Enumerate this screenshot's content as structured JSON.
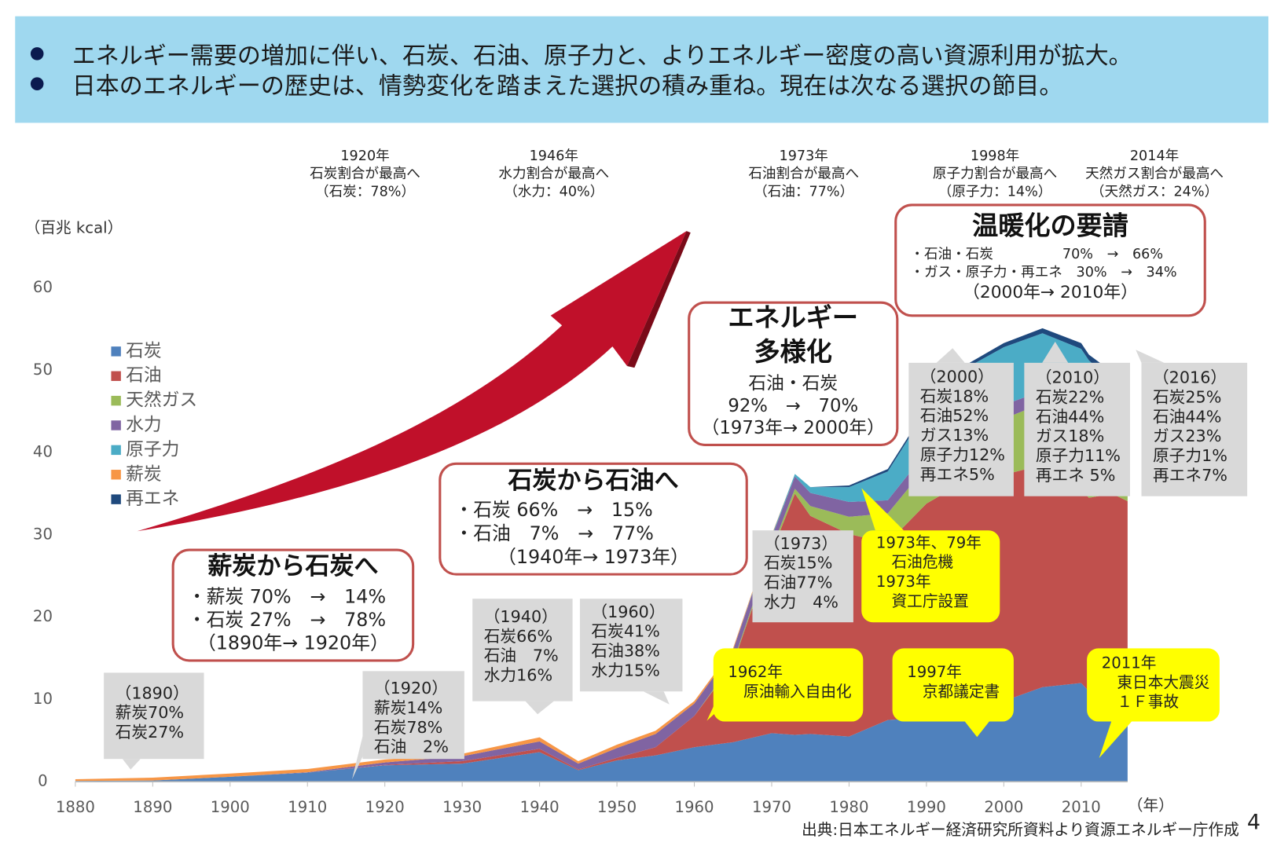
{
  "header": {
    "bullets": [
      "エネルギー需要の増加に伴い、石炭、石油、原子力と、よりエネルギー密度の高い資源利用が拡大。",
      "日本のエネルギーの歴史は、情勢変化を踏まえた選択の積み重ね。現在は次なる選択の節目。"
    ]
  },
  "milestones": [
    {
      "lines": [
        "1920年",
        "石炭割合が最高へ",
        "（石炭：78%）"
      ]
    },
    {
      "lines": [
        "1946年",
        "水力割合が最高へ",
        "（水力：40%）"
      ]
    },
    {
      "lines": [
        "1973年",
        "石油割合が最高へ",
        "（石油：77%）"
      ]
    },
    {
      "lines": [
        "1998年",
        "原子力割合が最高へ",
        "（原子力：14%）"
      ]
    },
    {
      "lines": [
        "2014年",
        "天然ガス割合が最高へ",
        "（天然ガス：24%）"
      ]
    }
  ],
  "boxes": [
    {
      "title": [
        "薪炭から石炭へ"
      ],
      "lines": [
        "・薪炭 70%　→　14%",
        "・石炭 27%　→　78%",
        "（1890年→ 1920年）"
      ]
    },
    {
      "title": [
        "石炭から石油へ"
      ],
      "lines": [
        "・石炭 66%　→　15%",
        "・石油　7%　→　77%",
        "（1940年→ 1973年）"
      ]
    },
    {
      "title": [
        "エネルギー",
        "多様化"
      ],
      "lines": [
        "石油・石炭",
        "92%　→　70%",
        "（1973年→ 2000年）"
      ]
    },
    {
      "title": [
        "温暖化の要請"
      ],
      "lines": [
        "・石油・石炭　　　　　70%　→　66%",
        "・ガス・原子力・再エネ　30%　→　34%",
        "（2000年→ 2010年）"
      ]
    }
  ],
  "gray_notes": [
    {
      "lines": [
        "（1890）",
        "薪炭70%",
        "石炭27%"
      ]
    },
    {
      "lines": [
        "（1920）",
        "薪炭14%",
        "石炭78%",
        "石油　2%"
      ]
    },
    {
      "lines": [
        "（1940）",
        "石炭66%",
        "石油　7%",
        "水力16%"
      ]
    },
    {
      "lines": [
        "（1960）",
        "石炭41%",
        "石油38%",
        "水力15%"
      ]
    },
    {
      "lines": [
        "（1973）",
        "石炭15%",
        "石油77%",
        "水力　4%"
      ]
    },
    {
      "lines": [
        "（2000）",
        "石炭18%",
        "石油52%",
        "ガス13%",
        "原子力12%",
        "再エネ5%"
      ]
    },
    {
      "lines": [
        "（2010）",
        "石炭22%",
        "石油44%",
        "ガス18%",
        "原子力11%",
        "再エネ 5%"
      ]
    },
    {
      "lines": [
        "（2016）",
        "石炭25%",
        "石油44%",
        "ガス23%",
        "原子力1%",
        "再エネ7%"
      ]
    }
  ],
  "yellow_notes": [
    {
      "lines": [
        "1962年",
        "　原油輸入自由化"
      ]
    },
    {
      "lines": [
        "1997年",
        "　京都議定書"
      ]
    },
    {
      "lines": [
        "2011年",
        "　東日本大震災",
        "　１Ｆ事故"
      ]
    },
    {
      "lines": [
        "1973年、79年",
        "　石油危機",
        "1973年",
        "　資工庁設置"
      ]
    }
  ],
  "source": "出典:日本エネルギー経済研究所資料より資源エネルギー庁作成",
  "page_number": "4",
  "chart_data": {
    "type": "stacked_area",
    "y_label": "（百兆 kcal）",
    "x_label": "（年）",
    "x": [
      1880,
      1890,
      1900,
      1910,
      1920,
      1930,
      1940,
      1945,
      1950,
      1955,
      1960,
      1965,
      1970,
      1973,
      1975,
      1980,
      1985,
      1990,
      1995,
      2000,
      2005,
      2010,
      2011,
      2014,
      2016
    ],
    "series": [
      {
        "name": "石炭",
        "color": "#4f81bd",
        "values": [
          0.1,
          0.15,
          0.6,
          1.1,
          2.0,
          2.2,
          3.6,
          1.4,
          2.6,
          3.2,
          4.2,
          4.8,
          5.9,
          5.7,
          5.8,
          5.5,
          7.5,
          7.8,
          8.5,
          9.8,
          11.5,
          12,
          11,
          12.5,
          12.3
        ]
      },
      {
        "name": "石油",
        "color": "#c0504d",
        "values": [
          0,
          0,
          0,
          0,
          0.05,
          0.3,
          0.4,
          0.1,
          0.3,
          1.0,
          3.8,
          9.5,
          22,
          29.3,
          26.5,
          24.6,
          21.5,
          26,
          28,
          27.5,
          27,
          23.5,
          23.5,
          22.5,
          21.8
        ]
      },
      {
        "name": "天然ガス",
        "color": "#9bbb59",
        "values": [
          0,
          0,
          0,
          0,
          0,
          0,
          0,
          0,
          0,
          0,
          0,
          0.2,
          0.4,
          0.6,
          1.2,
          2.1,
          3.6,
          4.5,
          5.5,
          6.8,
          7.5,
          9.5,
          11,
          12,
          11.6
        ]
      },
      {
        "name": "水力",
        "color": "#8064a2",
        "values": [
          0,
          0,
          0,
          0.05,
          0.3,
          0.6,
          0.9,
          0.7,
          1.2,
          1.6,
          1.5,
          1.5,
          1.4,
          1.5,
          1.6,
          1.8,
          1.6,
          1.8,
          1.7,
          1.7,
          1.5,
          1.6,
          1.7,
          1.6,
          1.6
        ]
      },
      {
        "name": "原子力",
        "color": "#4bacc6",
        "values": [
          0,
          0,
          0,
          0,
          0,
          0,
          0,
          0,
          0,
          0,
          0,
          0,
          0.2,
          0.3,
          0.7,
          1.8,
          3.5,
          5,
          6.5,
          7,
          7,
          6,
          4,
          0,
          0.4
        ]
      },
      {
        "name": "薪炭",
        "color": "#f79646",
        "values": [
          0.2,
          0.35,
          0.4,
          0.4,
          0.35,
          0.3,
          0.5,
          0.3,
          0.4,
          0.4,
          0.3,
          0.2,
          0.1,
          0,
          0,
          0,
          0,
          0,
          0,
          0,
          0,
          0,
          0,
          0,
          0
        ]
      },
      {
        "name": "再エネ",
        "color": "#1f497d",
        "values": [
          0,
          0,
          0,
          0,
          0,
          0,
          0,
          0,
          0,
          0,
          0,
          0,
          0,
          0,
          0,
          0.2,
          0.3,
          0.3,
          0.4,
          0.5,
          0.6,
          0.7,
          0.7,
          1.2,
          1.8
        ]
      }
    ],
    "xlim": [
      1880,
      2016
    ],
    "ylim": [
      0,
      60
    ],
    "xticks": [
      1880,
      1890,
      1900,
      1910,
      1920,
      1930,
      1940,
      1950,
      1960,
      1970,
      1980,
      1990,
      2000,
      2010
    ],
    "yticks": [
      0,
      10,
      20,
      30,
      40,
      50,
      60
    ],
    "grid": false
  }
}
